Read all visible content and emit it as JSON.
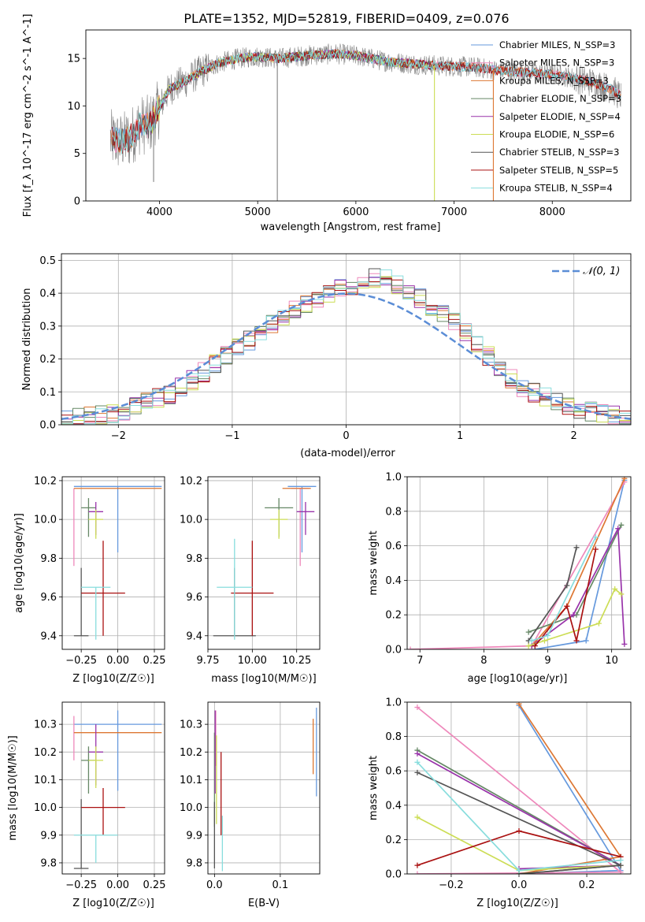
{
  "title": "PLATE=1352, MJD=52819, FIBERID=0409, z=0.076",
  "colors": {
    "chabrier_miles": "#6699dd",
    "salpeter_miles": "#ee88bb",
    "kroupa_miles": "#dd7733",
    "chabrier_elodie": "#668866",
    "salpeter_elodie": "#9933aa",
    "kroupa_elodie": "#ccdd55",
    "chabrier_stelib": "#555555",
    "salpeter_stelib": "#aa1111",
    "kroupa_stelib": "#88dddd",
    "data": "#808080",
    "normal": "#5b8dd6"
  },
  "chart_data": [
    {
      "id": "spectrum",
      "type": "line",
      "title": "PLATE=1352, MJD=52819, FIBERID=0409, z=0.076",
      "xlabel": "wavelength [Angstrom, rest frame]",
      "ylabel": "Flux [f_λ 10^-17 erg cm^-2 s^-1 A^-1]",
      "xlim": [
        3250,
        8800
      ],
      "ylim": [
        0,
        18
      ],
      "xticks": [
        "4000",
        "5000",
        "6000",
        "7000",
        "8000"
      ],
      "yticks": [
        "0",
        "5",
        "10",
        "15"
      ],
      "legend_loc": "upper right",
      "legend": [
        "Chabrier MILES, N_SSP=3",
        "Salpeter MILES, N_SSP=3",
        "Kroupa MILES, N_SSP=3",
        "Chabrier ELODIE, N_SSP=3",
        "Salpeter ELODIE, N_SSP=4",
        "Kroupa ELODIE, N_SSP=6",
        "Chabrier STELIB, N_SSP=3",
        "Salpeter STELIB, N_SSP=5",
        "Kroupa STELIB, N_SSP=4"
      ],
      "continuum": {
        "x": [
          3500,
          3600,
          3700,
          3800,
          3900,
          4000,
          4100,
          4200,
          4300,
          4400,
          4500,
          4600,
          4800,
          5000,
          5200,
          5500,
          5800,
          6000,
          6300,
          6600,
          6900,
          7200,
          7400,
          7600,
          7800,
          8000,
          8200,
          8400,
          8600,
          8700
        ],
        "y": [
          6.5,
          6.2,
          6.6,
          8.0,
          8.0,
          9.8,
          11.8,
          12.3,
          12.8,
          13.5,
          14.0,
          14.5,
          15.0,
          15.2,
          15.0,
          15.3,
          15.5,
          15.3,
          14.7,
          14.4,
          14.2,
          14.1,
          13.8,
          13.6,
          13.5,
          13.3,
          13.0,
          12.5,
          11.8,
          11.0
        ]
      },
      "data_range": [
        3500,
        8700
      ],
      "elodie_range": [
        3900,
        6800
      ],
      "stelib_range": [
        3500,
        8700
      ],
      "dropouts": [
        {
          "x": 5200,
          "y": 0.0
        },
        {
          "x": 6800,
          "y": 0.0
        },
        {
          "x": 7400,
          "y": 0.0
        },
        {
          "x": 3940,
          "y": 2.0
        }
      ]
    },
    {
      "id": "residuals",
      "type": "line",
      "xlabel": "(data-model)/error",
      "ylabel": "Normed distribution",
      "xlim": [
        -2.5,
        2.5
      ],
      "ylim": [
        0,
        0.52
      ],
      "xticks": [
        "−2",
        "−1",
        "0",
        "1",
        "2"
      ],
      "yticks": [
        "0.0",
        "0.1",
        "0.2",
        "0.3",
        "0.4",
        "0.5"
      ],
      "grid": true,
      "legend_loc": "upper right",
      "legend": [
        "𝒩(0, 1)"
      ],
      "bin_width": 0.1,
      "normal": {
        "mu": 0,
        "sigma": 1
      },
      "hist_envelope": {
        "x": [
          -2.5,
          -2.0,
          -1.5,
          -1.0,
          -0.5,
          0.0,
          0.3,
          0.5,
          1.0,
          1.5,
          2.0,
          2.5
        ],
        "y": [
          0.015,
          0.035,
          0.1,
          0.22,
          0.34,
          0.42,
          0.45,
          0.42,
          0.3,
          0.12,
          0.05,
          0.02
        ]
      }
    },
    {
      "id": "age_vs_Z",
      "type": "scatter",
      "xlabel": "Z [log10(Z/Z☉)]",
      "ylabel": "age [log10(age/yr)]",
      "xlim": [
        -0.38,
        0.32
      ],
      "ylim": [
        9.33,
        10.22
      ],
      "xticks": [
        "−0.25",
        "0.00",
        "0.25"
      ],
      "yticks": [
        "9.4",
        "9.6",
        "9.8",
        "10.0",
        "10.2"
      ],
      "grid": true,
      "points": [
        {
          "x": 0.0,
          "y": 10.17,
          "xerr": 0.3,
          "yerr_lo": 0.34,
          "yerr_hi": 0.0
        },
        {
          "x": -0.3,
          "y": 10.16,
          "xerr": 0.0,
          "yerr_lo": 0.4,
          "yerr_hi": 0.0
        },
        {
          "x": 0.0,
          "y": 10.16,
          "xerr": 0.3,
          "yerr_lo": 0.0,
          "yerr_hi": 0.0
        },
        {
          "x": -0.2,
          "y": 10.06,
          "xerr": 0.05,
          "yerr_lo": 0.15,
          "yerr_hi": 0.05
        },
        {
          "x": -0.15,
          "y": 10.04,
          "xerr": 0.05,
          "yerr_lo": 0.12,
          "yerr_hi": 0.05
        },
        {
          "x": -0.15,
          "y": 10.0,
          "xerr": 0.05,
          "yerr_lo": 0.1,
          "yerr_hi": 0.05
        },
        {
          "x": -0.25,
          "y": 9.4,
          "xerr": 0.05,
          "yerr_lo": 0.0,
          "yerr_hi": 0.35
        },
        {
          "x": -0.1,
          "y": 9.62,
          "xerr": 0.15,
          "yerr_lo": 0.22,
          "yerr_hi": 0.27
        },
        {
          "x": -0.15,
          "y": 9.65,
          "xerr": 0.1,
          "yerr_lo": 0.27,
          "yerr_hi": 0.0
        }
      ]
    },
    {
      "id": "age_vs_mass",
      "type": "scatter",
      "xlabel": "mass [log10(M/M☉)]",
      "xlim": [
        9.75,
        10.38
      ],
      "ylim": [
        9.33,
        10.22
      ],
      "xticks": [
        "9.75",
        "10.00",
        "10.25"
      ],
      "yticks": [
        "9.4",
        "9.6",
        "9.8",
        "10.0",
        "10.2"
      ],
      "grid": true,
      "points": [
        {
          "x": 10.28,
          "y": 10.17,
          "xerr": 0.08,
          "yerr_lo": 0.34,
          "yerr_hi": 0.0
        },
        {
          "x": 10.27,
          "y": 10.16,
          "xerr": 0.05,
          "yerr_lo": 0.4,
          "yerr_hi": 0.0
        },
        {
          "x": 10.25,
          "y": 10.16,
          "xerr": 0.08,
          "yerr_lo": 0.0,
          "yerr_hi": 0.0
        },
        {
          "x": 10.15,
          "y": 10.06,
          "xerr": 0.08,
          "yerr_lo": 0.15,
          "yerr_hi": 0.05
        },
        {
          "x": 10.3,
          "y": 10.04,
          "xerr": 0.05,
          "yerr_lo": 0.12,
          "yerr_hi": 0.05
        },
        {
          "x": 10.15,
          "y": 10.0,
          "xerr": 0.05,
          "yerr_lo": 0.1,
          "yerr_hi": 0.05
        },
        {
          "x": 9.9,
          "y": 9.4,
          "xerr": 0.12,
          "yerr_lo": 0.0,
          "yerr_hi": 0.35
        },
        {
          "x": 10.0,
          "y": 9.62,
          "xerr": 0.12,
          "yerr_lo": 0.22,
          "yerr_hi": 0.27
        },
        {
          "x": 9.9,
          "y": 9.65,
          "xerr": 0.1,
          "yerr_lo": 0.27,
          "yerr_hi": 0.25
        }
      ]
    },
    {
      "id": "weight_vs_age",
      "type": "line",
      "xlabel": "age [log10(age/yr)]",
      "ylabel": "mass weight",
      "xlim": [
        6.8,
        10.3
      ],
      "ylim": [
        0,
        1.0
      ],
      "xticks": [
        "7",
        "8",
        "9",
        "10"
      ],
      "yticks": [
        "0.0",
        "0.2",
        "0.4",
        "0.6",
        "0.8",
        "1.0"
      ],
      "grid": true,
      "series": [
        {
          "x": [
            8.8,
            9.6,
            10.2
          ],
          "y": [
            0.0,
            0.05,
            0.98
          ]
        },
        {
          "x": [
            6.85,
            8.75,
            10.2
          ],
          "y": [
            0.0,
            0.02,
            0.97
          ]
        },
        {
          "x": [
            8.75,
            9.3,
            10.2
          ],
          "y": [
            0.02,
            0.25,
            0.99
          ]
        },
        {
          "x": [
            8.7,
            9.45,
            10.15
          ],
          "y": [
            0.1,
            0.2,
            0.72
          ]
        },
        {
          "x": [
            8.75,
            9.4,
            10.1,
            10.2
          ],
          "y": [
            0.02,
            0.2,
            0.7,
            0.03
          ]
        },
        {
          "x": [
            8.7,
            8.95,
            9.8,
            10.05,
            10.15
          ],
          "y": [
            0.02,
            0.05,
            0.15,
            0.35,
            0.32
          ]
        },
        {
          "x": [
            8.7,
            9.3,
            9.45
          ],
          "y": [
            0.05,
            0.37,
            0.59
          ]
        },
        {
          "x": [
            8.8,
            9.3,
            9.45,
            9.75
          ],
          "y": [
            0.02,
            0.25,
            0.05,
            0.58
          ]
        },
        {
          "x": [
            8.75,
            9.0,
            9.75
          ],
          "y": [
            0.05,
            0.08,
            0.65
          ]
        }
      ]
    },
    {
      "id": "mass_vs_Z",
      "type": "scatter",
      "xlabel": "Z [log10(Z/Z☉)]",
      "ylabel": "mass [log10(M/M☉)]",
      "xlim": [
        -0.38,
        0.32
      ],
      "ylim": [
        9.76,
        10.38
      ],
      "xticks": [
        "−0.25",
        "0.00",
        "0.25"
      ],
      "yticks": [
        "9.8",
        "9.9",
        "10.0",
        "10.1",
        "10.2",
        "10.3"
      ],
      "grid": true,
      "points": [
        {
          "x": 0.0,
          "y": 10.3,
          "xerr": 0.3,
          "yerr_lo": 0.24,
          "yerr_hi": 0.05
        },
        {
          "x": -0.3,
          "y": 10.27,
          "xerr": 0.0,
          "yerr_lo": 0.1,
          "yerr_hi": 0.06
        },
        {
          "x": 0.0,
          "y": 10.27,
          "xerr": 0.3,
          "yerr_lo": 0.0,
          "yerr_hi": 0.0
        },
        {
          "x": -0.2,
          "y": 10.17,
          "xerr": 0.05,
          "yerr_lo": 0.12,
          "yerr_hi": 0.05
        },
        {
          "x": -0.15,
          "y": 10.2,
          "xerr": 0.05,
          "yerr_lo": 0.12,
          "yerr_hi": 0.1
        },
        {
          "x": -0.15,
          "y": 10.17,
          "xerr": 0.05,
          "yerr_lo": 0.1,
          "yerr_hi": 0.05
        },
        {
          "x": -0.25,
          "y": 9.78,
          "xerr": 0.05,
          "yerr_lo": 0.0,
          "yerr_hi": 0.25
        },
        {
          "x": -0.1,
          "y": 10.0,
          "xerr": 0.15,
          "yerr_lo": 0.1,
          "yerr_hi": 0.07
        },
        {
          "x": -0.15,
          "y": 9.9,
          "xerr": 0.15,
          "yerr_lo": 0.1,
          "yerr_hi": 0.0
        }
      ]
    },
    {
      "id": "mass_vs_EBV",
      "type": "scatter",
      "xlabel": "E(B-V)",
      "xlim": [
        -0.01,
        0.16
      ],
      "ylim": [
        9.76,
        10.38
      ],
      "xticks": [
        "0.0",
        "0.1"
      ],
      "yticks": [
        "9.8",
        "9.9",
        "10.0",
        "10.1",
        "10.2",
        "10.3"
      ],
      "grid": true,
      "points": [
        {
          "x": 0.155,
          "y": 10.2,
          "yerr": 0.16
        },
        {
          "x": 0.002,
          "y": 10.25,
          "yerr": 0.1
        },
        {
          "x": 0.15,
          "y": 10.22,
          "yerr": 0.1
        },
        {
          "x": 0.0,
          "y": 10.1,
          "yerr": 0.17
        },
        {
          "x": 0.001,
          "y": 10.2,
          "yerr": 0.15
        },
        {
          "x": 0.003,
          "y": 10.1,
          "yerr": 0.16
        },
        {
          "x": 0.0,
          "y": 9.9,
          "yerr": 0.12
        },
        {
          "x": 0.01,
          "y": 10.05,
          "yerr": 0.15
        },
        {
          "x": 0.012,
          "y": 9.87,
          "yerr": 0.1
        }
      ]
    },
    {
      "id": "weight_vs_Z",
      "type": "line",
      "xlabel": "Z [log10(Z/Z☉)]",
      "ylabel": "mass weight",
      "xlim": [
        -0.33,
        0.33
      ],
      "ylim": [
        0,
        1.0
      ],
      "xticks": [
        "−0.2",
        "0.0",
        "0.2"
      ],
      "yticks": [
        "0.0",
        "0.2",
        "0.4",
        "0.6",
        "0.8",
        "1.0"
      ],
      "grid": true,
      "series": [
        {
          "x": [
            0.0,
            0.3,
            0.0
          ],
          "y": [
            0.98,
            0.02,
            0.0
          ]
        },
        {
          "x": [
            -0.3,
            0.3,
            -0.3
          ],
          "y": [
            0.97,
            0.01,
            0.0
          ]
        },
        {
          "x": [
            0.0,
            0.3,
            0.0
          ],
          "y": [
            0.99,
            0.1,
            0.0
          ]
        },
        {
          "x": [
            -0.3,
            0.3,
            0.0
          ],
          "y": [
            0.72,
            0.05,
            0.0
          ]
        },
        {
          "x": [
            -0.3,
            0.3,
            0.0
          ],
          "y": [
            0.7,
            0.05,
            0.03
          ]
        },
        {
          "x": [
            -0.3,
            0.0,
            0.3
          ],
          "y": [
            0.33,
            0.02,
            0.05
          ]
        },
        {
          "x": [
            -0.3,
            0.3,
            0.0
          ],
          "y": [
            0.59,
            0.05,
            0.0
          ]
        },
        {
          "x": [
            -0.3,
            0.0,
            0.3
          ],
          "y": [
            0.05,
            0.25,
            0.1
          ]
        },
        {
          "x": [
            -0.3,
            0.0,
            0.3
          ],
          "y": [
            0.65,
            0.02,
            0.08
          ]
        }
      ]
    }
  ]
}
